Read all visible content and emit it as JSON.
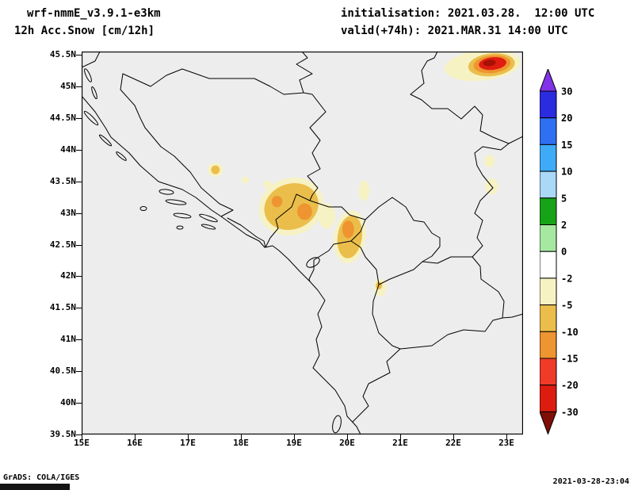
{
  "header": {
    "line1_left": "wrf-nmmE_v3.9.1-e3km",
    "line2_left": "12h Acc.Snow [cm/12h]",
    "line1_right": "initialisation: 2021.03.28.  12:00 UTC",
    "line2_right": "valid(+74h): 2021.MAR.31 14:00 UTC"
  },
  "axes": {
    "lat_labels": [
      "45.5N",
      "45N",
      "44.5N",
      "44N",
      "43.5N",
      "43N",
      "42.5N",
      "42N",
      "41.5N",
      "41N",
      "40.5N",
      "40N",
      "39.5N"
    ],
    "lon_labels": [
      "15E",
      "16E",
      "17E",
      "18E",
      "19E",
      "20E",
      "21E",
      "22E",
      "23E"
    ]
  },
  "colorbar": {
    "labels": [
      "30",
      "20",
      "15",
      "10",
      "5",
      "2",
      "0",
      "-2",
      "-5",
      "-10",
      "-15",
      "-20",
      "-30"
    ],
    "segments": [
      "#2B2BE0",
      "#2F6FF2",
      "#3FAAF5",
      "#A9D9F7",
      "#17A317",
      "#A6E8A0",
      "#FFFFFF",
      "#F7F2C4",
      "#EBBE4B",
      "#EE9430",
      "#F03B28",
      "#DD1C10"
    ],
    "arrow_top": "#8033E8",
    "arrow_bottom": "#7E0E06"
  },
  "palette": {
    "cream": "#F7F2C4",
    "gold": "#EBBE4B",
    "orange": "#EE9430",
    "red": "#E01C10",
    "darkred": "#A61005"
  },
  "footer": {
    "left": "GrADS: COLA/IGES",
    "right": "2021-03-28-23:04"
  },
  "chart_data": {
    "type": "heatmap",
    "title": "12h Acc.Snow [cm/12h]",
    "model": "wrf-nmmE_v3.9.1-e3km",
    "initialisation": "2021.03.28. 12:00 UTC",
    "valid": "(+74h) 2021.MAR.31 14:00 UTC",
    "units": "cm/12h",
    "lon_range": [
      15,
      23.3
    ],
    "lat_range": [
      39.5,
      45.55
    ],
    "grid": false,
    "legend_position": "right-colorbar",
    "colorbar_levels": [
      30,
      20,
      15,
      10,
      5,
      2,
      0,
      -2,
      -5,
      -10,
      -15,
      -20,
      -30
    ],
    "regions": [
      {
        "name": "herzegovina-band-fringe",
        "lon": 18.95,
        "lat": 43.1,
        "rx": 0.62,
        "ry": 0.45,
        "rot": -20,
        "color": "cream",
        "band": "-2 to -5"
      },
      {
        "name": "herzegovina-band",
        "lon": 18.95,
        "lat": 43.1,
        "rx": 0.52,
        "ry": 0.36,
        "rot": -20,
        "color": "gold",
        "band": "-5 to -10"
      },
      {
        "name": "band-neck",
        "lon": 19.62,
        "lat": 42.95,
        "rx": 0.16,
        "ry": 0.2,
        "rot": 0,
        "color": "cream",
        "band": "-2 to -5"
      },
      {
        "name": "band-core-east",
        "lon": 19.2,
        "lat": 43.02,
        "rx": 0.14,
        "ry": 0.13,
        "rot": 0,
        "color": "orange",
        "band": "-10 to -15"
      },
      {
        "name": "band-core-west",
        "lon": 18.68,
        "lat": 43.18,
        "rx": 0.1,
        "ry": 0.09,
        "rot": 0,
        "color": "orange",
        "band": "-10 to -15"
      },
      {
        "name": "montenegro-serbia-blob-fringe",
        "lon": 20.05,
        "lat": 42.62,
        "rx": 0.3,
        "ry": 0.42,
        "rot": 8,
        "color": "cream",
        "band": "-2 to -5"
      },
      {
        "name": "montenegro-serbia-blob",
        "lon": 20.05,
        "lat": 42.62,
        "rx": 0.23,
        "ry": 0.34,
        "rot": 8,
        "color": "gold",
        "band": "-5 to -10"
      },
      {
        "name": "montenegro-serbia-blob-core",
        "lon": 20.02,
        "lat": 42.74,
        "rx": 0.11,
        "ry": 0.14,
        "rot": 0,
        "color": "orange",
        "band": "-10 to -15"
      },
      {
        "name": "central-bosnia-spot-fringe",
        "lon": 17.52,
        "lat": 43.68,
        "rx": 0.14,
        "ry": 0.11,
        "rot": 0,
        "color": "cream",
        "band": "-2 to -5"
      },
      {
        "name": "central-bosnia-spot",
        "lon": 17.52,
        "lat": 43.68,
        "rx": 0.08,
        "ry": 0.07,
        "rot": 0,
        "color": "gold",
        "band": "-5 to -10"
      },
      {
        "name": "east-bosnia-spot",
        "lon": 18.08,
        "lat": 43.52,
        "rx": 0.07,
        "ry": 0.05,
        "rot": 0,
        "color": "cream",
        "band": "-2 to -5"
      },
      {
        "name": "band-north-spot",
        "lon": 18.5,
        "lat": 43.45,
        "rx": 0.08,
        "ry": 0.06,
        "rot": 0,
        "color": "cream",
        "band": "-2 to -5"
      },
      {
        "name": "west-serbia-streak",
        "lon": 20.32,
        "lat": 43.35,
        "rx": 0.1,
        "ry": 0.16,
        "rot": 0,
        "color": "cream",
        "band": "-2 to -5"
      },
      {
        "name": "sar-mountains-spot-fringe",
        "lon": 20.62,
        "lat": 41.82,
        "rx": 0.12,
        "ry": 0.14,
        "rot": 0,
        "color": "cream",
        "band": "-2 to -5"
      },
      {
        "name": "sar-mountains-spot",
        "lon": 20.6,
        "lat": 41.85,
        "rx": 0.06,
        "ry": 0.06,
        "rot": 0,
        "color": "gold",
        "band": "-5 to -10"
      },
      {
        "name": "east-serbia-spot",
        "lon": 22.72,
        "lat": 43.42,
        "rx": 0.12,
        "ry": 0.13,
        "rot": 0,
        "color": "cream",
        "band": "-2 to -5"
      },
      {
        "name": "east-serbia-spot-2",
        "lon": 22.68,
        "lat": 43.82,
        "rx": 0.1,
        "ry": 0.1,
        "rot": 0,
        "color": "cream",
        "band": "-2 to -5"
      },
      {
        "name": "banat-maximum-fringe",
        "lon": 22.55,
        "lat": 45.33,
        "rx": 0.72,
        "ry": 0.24,
        "rot": -6,
        "color": "cream",
        "band": "-2 to -5"
      },
      {
        "name": "banat-maximum-gold",
        "lon": 22.72,
        "lat": 45.34,
        "rx": 0.44,
        "ry": 0.18,
        "rot": -6,
        "color": "gold",
        "band": "-5 to -10"
      },
      {
        "name": "banat-maximum-orange",
        "lon": 22.73,
        "lat": 45.35,
        "rx": 0.35,
        "ry": 0.14,
        "rot": -6,
        "color": "orange",
        "band": "-10 to -15"
      },
      {
        "name": "banat-maximum-red",
        "lon": 22.74,
        "lat": 45.36,
        "rx": 0.26,
        "ry": 0.1,
        "rot": -6,
        "color": "red",
        "band": "-20 to -30"
      },
      {
        "name": "banat-maximum-core",
        "lon": 22.68,
        "lat": 45.37,
        "rx": 0.12,
        "ry": 0.05,
        "rot": -6,
        "color": "darkred",
        "band": "< -30"
      },
      {
        "name": "banat-west-spot",
        "lon": 21.98,
        "lat": 45.36,
        "rx": 0.08,
        "ry": 0.06,
        "rot": 0,
        "color": "cream",
        "band": "-2 to -5"
      }
    ]
  }
}
